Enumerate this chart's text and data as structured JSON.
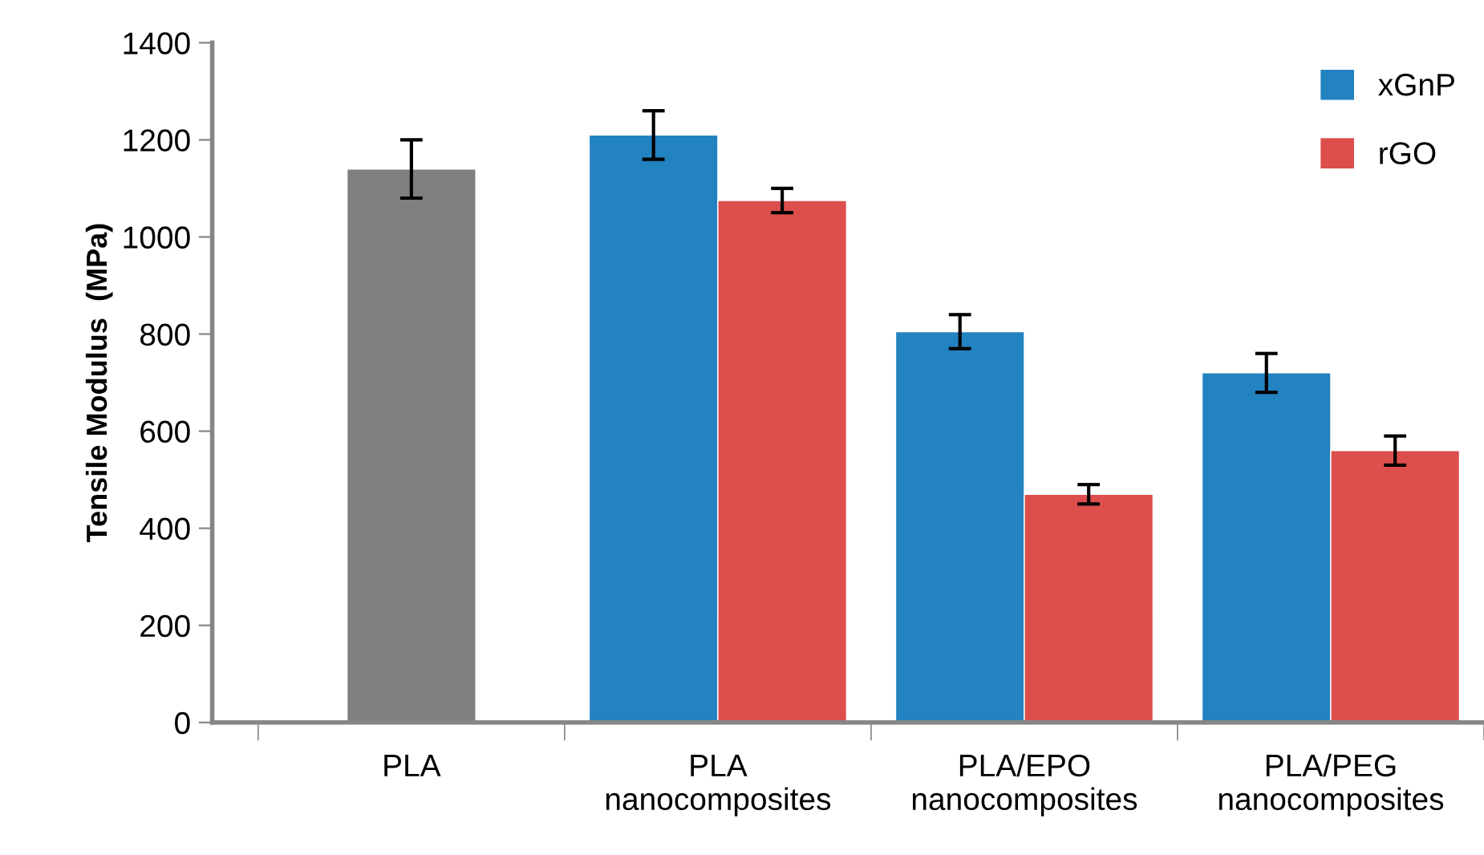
{
  "chart_data": {
    "type": "bar",
    "ylabel": "Tensile Modulus  (MPa)",
    "categories": [
      "PLA",
      "PLA\nnanocomposites",
      "PLA/EPO\nnanocomposites",
      "PLA/PEG\nnanocomposites"
    ],
    "series": [
      {
        "color": "#7f7f7f",
        "values": [
          1140,
          null,
          null,
          null
        ],
        "errors": [
          60,
          null,
          null,
          null
        ]
      },
      {
        "name": "xGnP",
        "color": "#2382c0",
        "values": [
          null,
          1210,
          805,
          720
        ],
        "errors": [
          null,
          50,
          35,
          40
        ]
      },
      {
        "name": "rGO",
        "color": "#dc4f4c",
        "values": [
          null,
          1075,
          470,
          560
        ],
        "errors": [
          null,
          25,
          20,
          30
        ]
      }
    ],
    "ylim": [
      0,
      1400
    ],
    "yticks": [
      0,
      200,
      400,
      600,
      800,
      1000,
      1200,
      1400
    ],
    "grid": false,
    "legend": "top right"
  }
}
